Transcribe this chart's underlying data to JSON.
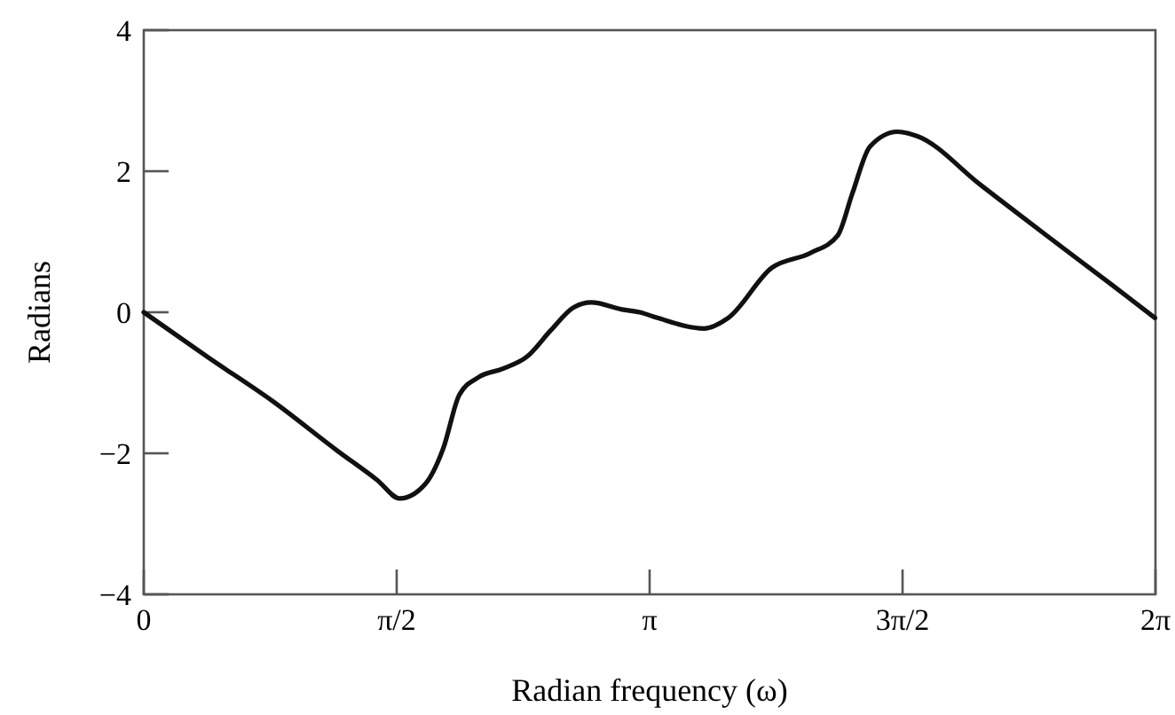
{
  "chart_data": {
    "type": "line",
    "xlabel": "Radian frequency (ω)",
    "ylabel": "Radians",
    "x": [
      0,
      0.4,
      0.8,
      1.2,
      1.45,
      1.59,
      1.75,
      1.86,
      1.96,
      2.08,
      2.23,
      2.38,
      2.53,
      2.67,
      2.78,
      2.97,
      3.08,
      3.19,
      3.48,
      3.63,
      3.9,
      4.14,
      4.31,
      4.4,
      4.51,
      4.68,
      4.8,
      5.2,
      5.6,
      6.0,
      6.28
    ],
    "series": [
      {
        "color": "#111111",
        "values": [
          0,
          -0.64,
          -1.26,
          -1.96,
          -2.38,
          -2.64,
          -2.43,
          -1.93,
          -1.17,
          -0.92,
          -0.8,
          -0.63,
          -0.25,
          0.07,
          0.14,
          0.04,
          0,
          -0.08,
          -0.23,
          -0.08,
          0.63,
          0.84,
          1.09,
          1.68,
          2.35,
          2.56,
          2.5,
          1.8,
          1.1,
          0.41,
          -0.08
        ]
      }
    ],
    "xlim": [
      0,
      6.2832
    ],
    "xticks": [
      {
        "value": 0,
        "label": "0"
      },
      {
        "value": 1.5708,
        "label": "π/2"
      },
      {
        "value": 3.1416,
        "label": "π"
      },
      {
        "value": 4.7124,
        "label": "3π/2"
      },
      {
        "value": 6.2832,
        "label": "2π"
      }
    ],
    "ylim": [
      -4,
      4
    ],
    "yticks": [
      {
        "value": -4,
        "label": "−4"
      },
      {
        "value": -2,
        "label": "−2"
      },
      0,
      2,
      4
    ],
    "marker": "none",
    "line_style": "solid"
  }
}
